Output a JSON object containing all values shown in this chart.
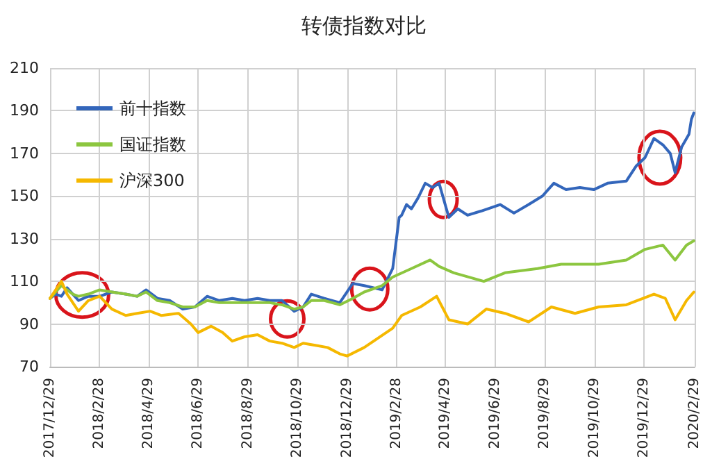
{
  "chart_data": {
    "type": "line",
    "title": "转债指数对比",
    "xlim": [
      "2017-12-29",
      "2020-02-29"
    ],
    "xticks": [
      {
        "value": "2017-12-29",
        "label": "2017/12/29"
      },
      {
        "value": "2018-02-28",
        "label": "2018/2/28"
      },
      {
        "value": "2018-04-29",
        "label": "2018/4/29"
      },
      {
        "value": "2018-06-29",
        "label": "2018/6/29"
      },
      {
        "value": "2018-08-29",
        "label": "2018/8/29"
      },
      {
        "value": "2018-10-29",
        "label": "2018/10/29"
      },
      {
        "value": "2018-12-29",
        "label": "2018/12/29"
      },
      {
        "value": "2019-02-28",
        "label": "2019/2/28"
      },
      {
        "value": "2019-04-29",
        "label": "2019/4/29"
      },
      {
        "value": "2019-06-29",
        "label": "2019/6/29"
      },
      {
        "value": "2019-08-29",
        "label": "2019/8/29"
      },
      {
        "value": "2019-10-29",
        "label": "2019/10/29"
      },
      {
        "value": "2019-12-29",
        "label": "2019/12/29"
      },
      {
        "value": "2020-02-29",
        "label": "2020/2/29"
      }
    ],
    "ylim": [
      70,
      210
    ],
    "yticks": [
      70,
      90,
      110,
      130,
      150,
      170,
      190,
      210
    ],
    "grid": true,
    "legend": "top left",
    "marker": "none",
    "line_style": "solid",
    "series": [
      {
        "name": "前十指数",
        "color": "#3366bb",
        "x": [
          "2017-12-29",
          "2018-01-05",
          "2018-01-12",
          "2018-01-19",
          "2018-01-26",
          "2018-02-02",
          "2018-02-14",
          "2018-02-28",
          "2018-03-15",
          "2018-04-01",
          "2018-04-15",
          "2018-04-26",
          "2018-05-10",
          "2018-05-25",
          "2018-06-10",
          "2018-06-25",
          "2018-07-10",
          "2018-07-25",
          "2018-08-10",
          "2018-08-25",
          "2018-09-10",
          "2018-09-25",
          "2018-10-10",
          "2018-10-25",
          "2018-11-05",
          "2018-11-15",
          "2018-12-01",
          "2018-12-20",
          "2019-01-05",
          "2019-01-19",
          "2019-02-10",
          "2019-02-23",
          "2019-03-03",
          "2019-03-06",
          "2019-03-12",
          "2019-03-18",
          "2019-03-26",
          "2019-04-04",
          "2019-04-13",
          "2019-04-21",
          "2019-05-03",
          "2019-05-14",
          "2019-05-26",
          "2019-06-12",
          "2019-07-05",
          "2019-07-22",
          "2019-08-09",
          "2019-08-26",
          "2019-09-09",
          "2019-09-24",
          "2019-10-11",
          "2019-10-28",
          "2019-11-14",
          "2019-12-07",
          "2019-12-19",
          "2019-12-30",
          "2020-01-10",
          "2020-01-21",
          "2020-01-30",
          "2020-02-05",
          "2020-02-13",
          "2020-02-22",
          "2020-02-25",
          "2020-02-28"
        ],
        "values": [
          102,
          104,
          103,
          107,
          104,
          101,
          103,
          103,
          105,
          104,
          103,
          106,
          102,
          101,
          97,
          98,
          103,
          101,
          102,
          101,
          102,
          101,
          101,
          96,
          98,
          104,
          102,
          100,
          109,
          108,
          106,
          116,
          140,
          141,
          146,
          144,
          149,
          156,
          154,
          156,
          140,
          144,
          141,
          143,
          146,
          142,
          146,
          150,
          156,
          153,
          154,
          153,
          156,
          157,
          164,
          168,
          177,
          174,
          170,
          161,
          173,
          179,
          186,
          189
        ]
      },
      {
        "name": "国证指数",
        "color": "#8cc63f",
        "x": [
          "2017-12-29",
          "2018-01-05",
          "2018-01-12",
          "2018-01-19",
          "2018-01-26",
          "2018-02-02",
          "2018-02-14",
          "2018-02-28",
          "2018-03-15",
          "2018-04-01",
          "2018-04-15",
          "2018-04-26",
          "2018-05-10",
          "2018-05-25",
          "2018-06-10",
          "2018-06-25",
          "2018-07-10",
          "2018-07-25",
          "2018-08-10",
          "2018-08-25",
          "2018-09-10",
          "2018-09-25",
          "2018-10-10",
          "2018-10-25",
          "2018-11-05",
          "2018-11-15",
          "2018-12-01",
          "2018-12-20",
          "2019-01-05",
          "2019-01-19",
          "2019-02-10",
          "2019-02-23",
          "2019-03-18",
          "2019-04-10",
          "2019-04-21",
          "2019-05-09",
          "2019-06-15",
          "2019-07-11",
          "2019-08-20",
          "2019-09-18",
          "2019-11-03",
          "2019-12-07",
          "2019-12-30",
          "2020-01-21",
          "2020-02-05",
          "2020-02-19",
          "2020-02-28"
        ],
        "values": [
          102,
          105,
          108,
          106,
          104,
          103,
          104,
          106,
          105,
          104,
          103,
          105,
          101,
          100,
          98,
          98,
          101,
          100,
          100,
          100,
          100,
          100,
          99,
          97,
          98,
          101,
          101,
          99,
          102,
          105,
          108,
          112,
          116,
          120,
          117,
          114,
          110,
          114,
          116,
          118,
          118,
          120,
          125,
          127,
          120,
          127,
          129
        ]
      },
      {
        "name": "沪深300",
        "color": "#f5b800",
        "x": [
          "2017-12-29",
          "2018-01-05",
          "2018-01-12",
          "2018-01-19",
          "2018-01-26",
          "2018-02-02",
          "2018-02-14",
          "2018-02-28",
          "2018-03-15",
          "2018-04-01",
          "2018-04-15",
          "2018-05-01",
          "2018-05-15",
          "2018-06-05",
          "2018-06-20",
          "2018-06-29",
          "2018-07-15",
          "2018-07-29",
          "2018-08-10",
          "2018-08-25",
          "2018-09-10",
          "2018-09-25",
          "2018-10-10",
          "2018-10-25",
          "2018-11-05",
          "2018-11-20",
          "2018-12-05",
          "2018-12-20",
          "2018-12-29",
          "2019-01-19",
          "2019-02-23",
          "2019-03-06",
          "2019-03-29",
          "2019-04-18",
          "2019-05-03",
          "2019-05-26",
          "2019-06-18",
          "2019-07-11",
          "2019-08-09",
          "2019-09-06",
          "2019-10-05",
          "2019-11-03",
          "2019-12-07",
          "2020-01-10",
          "2020-01-24",
          "2020-02-05",
          "2020-02-19",
          "2020-02-28"
        ],
        "values": [
          102,
          106,
          110,
          104,
          100,
          96,
          101,
          103,
          97,
          94,
          95,
          96,
          94,
          95,
          90,
          86,
          89,
          86,
          82,
          84,
          85,
          82,
          81,
          79,
          81,
          80,
          79,
          76,
          75,
          79,
          88,
          94,
          98,
          103,
          92,
          90,
          97,
          95,
          91,
          98,
          95,
          98,
          99,
          104,
          102,
          92,
          101,
          105
        ]
      }
    ]
  }
}
